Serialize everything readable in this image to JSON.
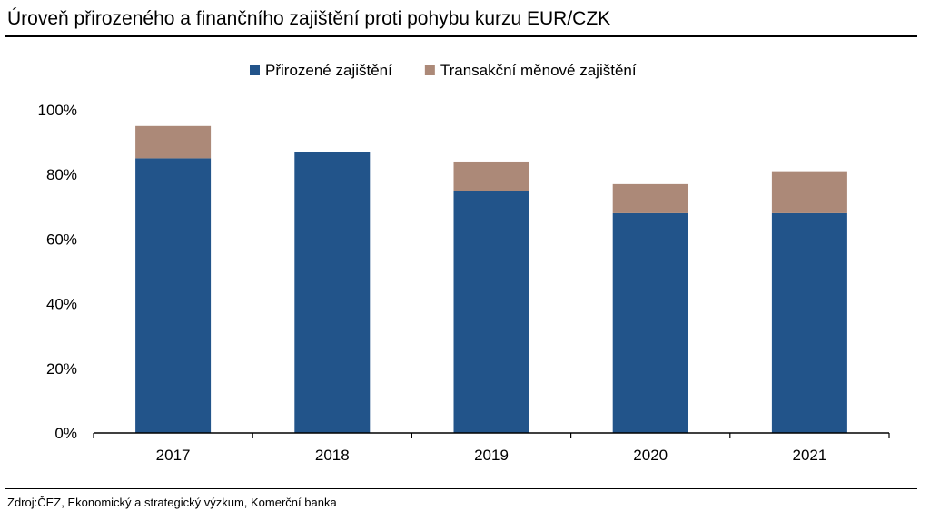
{
  "title": "Úroveň přirozeného a finančního zajištění proti pohybu kurzu EUR/CZK",
  "source": "Zdroj:ČEZ, Ekonomický a strategický výzkum, Komerční banka",
  "chart_data": {
    "type": "bar",
    "stacked": true,
    "categories": [
      "2017",
      "2018",
      "2019",
      "2020",
      "2021"
    ],
    "series": [
      {
        "name": "Přirozené zajištění",
        "color": "#22548a",
        "values": [
          85,
          87,
          75,
          68,
          68
        ]
      },
      {
        "name": "Transakční měnové zajištění",
        "color": "#ac8978",
        "values": [
          10,
          0,
          9,
          9,
          13
        ]
      }
    ],
    "ylim": [
      0,
      100
    ],
    "yticks": [
      0,
      20,
      40,
      60,
      80,
      100
    ],
    "ytick_labels": [
      "0%",
      "20%",
      "40%",
      "60%",
      "80%",
      "100%"
    ],
    "grid": false,
    "legend": "top-center"
  }
}
